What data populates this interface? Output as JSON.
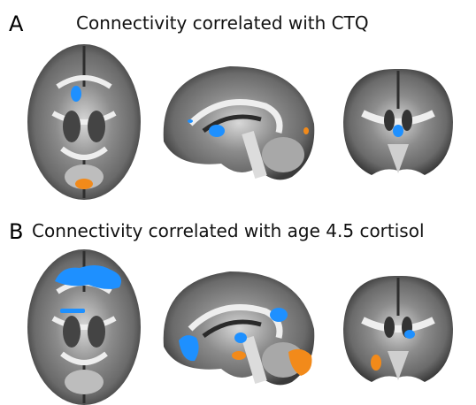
{
  "panels": [
    {
      "letter": "A",
      "title": "Connectivity correlated with CTQ"
    },
    {
      "letter": "B",
      "title": "Connectivity correlated with age 4.5 cortisol"
    }
  ]
}
